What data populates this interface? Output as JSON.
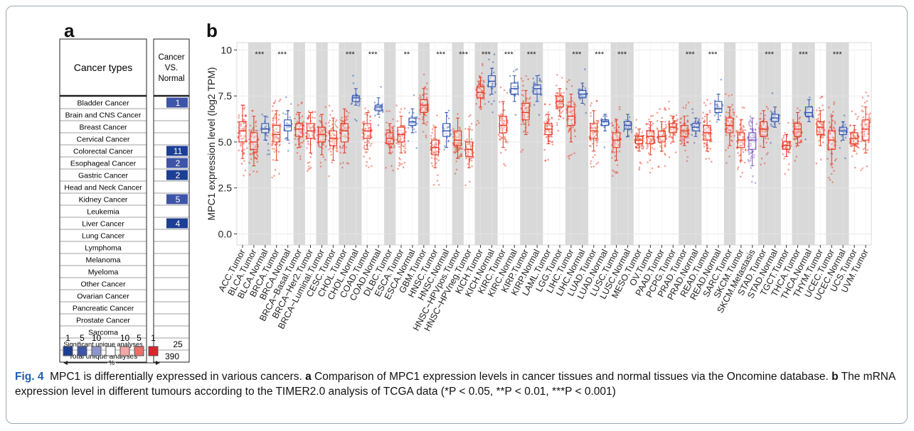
{
  "panel_a": {
    "letter": "a",
    "header_types": "Cancer types",
    "header_comp_l1": "Cancer",
    "header_comp_l2": "VS.",
    "header_comp_l3": "Normal",
    "rows": [
      {
        "label": "Bladder Cancer",
        "value": "1",
        "color": "#3d54a8"
      },
      {
        "label": "Brain and CNS Cancer",
        "value": "",
        "color": ""
      },
      {
        "label": "Breast Cancer",
        "value": "",
        "color": ""
      },
      {
        "label": "Cervical Cancer",
        "value": "",
        "color": ""
      },
      {
        "label": "Colorectal Cancer",
        "value": "11",
        "color": "#1c3f94"
      },
      {
        "label": "Esophageal Cancer",
        "value": "2",
        "color": "#3d54a8"
      },
      {
        "label": "Gastric Cancer",
        "value": "2",
        "color": "#1c3f94"
      },
      {
        "label": "Head and Neck Cancer",
        "value": "",
        "color": ""
      },
      {
        "label": "Kidney Cancer",
        "value": "5",
        "color": "#3d54a8"
      },
      {
        "label": "Leukemia",
        "value": "",
        "color": ""
      },
      {
        "label": "Liver Cancer",
        "value": "4",
        "color": "#1c3f94"
      },
      {
        "label": "Lung Cancer",
        "value": "",
        "color": ""
      },
      {
        "label": "Lymphoma",
        "value": "",
        "color": ""
      },
      {
        "label": "Melanoma",
        "value": "",
        "color": ""
      },
      {
        "label": "Myeloma",
        "value": "",
        "color": ""
      },
      {
        "label": "Other Cancer",
        "value": "",
        "color": ""
      },
      {
        "label": "Ovarian Cancer",
        "value": "",
        "color": ""
      },
      {
        "label": "Pancreatic Cancer",
        "value": "",
        "color": ""
      },
      {
        "label": "Prostate Cancer",
        "value": "",
        "color": ""
      },
      {
        "label": "Sarcoma",
        "value": "",
        "color": ""
      }
    ],
    "sig_label": "Significant unique analyses",
    "sig_value": "25",
    "total_label": "Total unique analyses",
    "total_value": "390",
    "legend": {
      "labels": [
        "1",
        "5",
        "10",
        "10",
        "5",
        "1"
      ],
      "percent": "%",
      "swatches": [
        "#1c3f94",
        "#3d54a8",
        "#8d96cc",
        "#ffffff",
        "#f3a8a6",
        "#ec6e68",
        "#d9262b"
      ]
    }
  },
  "panel_b": {
    "letter": "b"
  },
  "chart_data": {
    "type": "box",
    "ylabel": "MPC1 expression level (log2 TPM)",
    "ylim": [
      -0.6,
      10.4
    ],
    "yticks": [
      0.0,
      2.5,
      5.0,
      7.5,
      10.0
    ],
    "ytick_labels": [
      "0.0",
      "2.5",
      "5.0",
      "7.5",
      "10"
    ],
    "grid": true,
    "colors": {
      "tumor": "#e8351f",
      "normal": "#2b50b0",
      "shade": "#d9d9d9",
      "bg": "#ffffff"
    },
    "categories": [
      {
        "label": "ACC.Tumor",
        "kind": "tumor",
        "shade": false,
        "sig": "",
        "med": 5.6,
        "q1": 5.0,
        "q3": 6.1,
        "lo": 4.1,
        "hi": 7.0
      },
      {
        "label": "BLCA.Tumor",
        "kind": "tumor",
        "shade": true,
        "sig": "***",
        "med": 5.0,
        "q1": 4.6,
        "q3": 5.5,
        "lo": 3.7,
        "hi": 6.4
      },
      {
        "label": "BLCA.Normal",
        "kind": "normal",
        "shade": true,
        "sig": "",
        "med": 5.7,
        "q1": 5.5,
        "q3": 6.0,
        "lo": 5.1,
        "hi": 6.4
      },
      {
        "label": "BRCA.Tumor",
        "kind": "tumor",
        "shade": false,
        "sig": "***",
        "med": 5.4,
        "q1": 5.0,
        "q3": 5.9,
        "lo": 4.0,
        "hi": 6.7
      },
      {
        "label": "BRCA.Normal",
        "kind": "normal",
        "shade": false,
        "sig": "",
        "med": 5.9,
        "q1": 5.6,
        "q3": 6.2,
        "lo": 5.1,
        "hi": 6.7
      },
      {
        "label": "BRCA−Basal.Tumor",
        "kind": "tumor",
        "shade": true,
        "sig": "",
        "med": 5.7,
        "q1": 5.3,
        "q3": 6.0,
        "lo": 4.7,
        "hi": 6.6
      },
      {
        "label": "BRCA−Her2.Tumor",
        "kind": "tumor",
        "shade": false,
        "sig": "",
        "med": 5.6,
        "q1": 5.2,
        "q3": 6.0,
        "lo": 4.4,
        "hi": 6.6
      },
      {
        "label": "BRCA−Luminal.Tumor",
        "kind": "tumor",
        "shade": true,
        "sig": "",
        "med": 5.4,
        "q1": 5.0,
        "q3": 5.8,
        "lo": 4.3,
        "hi": 6.5
      },
      {
        "label": "CESC.Tumor",
        "kind": "tumor",
        "shade": false,
        "sig": "",
        "med": 5.2,
        "q1": 4.8,
        "q3": 5.6,
        "lo": 4.0,
        "hi": 6.3
      },
      {
        "label": "CHOL.Tumor",
        "kind": "tumor",
        "shade": true,
        "sig": "***",
        "med": 5.6,
        "q1": 5.0,
        "q3": 6.0,
        "lo": 4.4,
        "hi": 6.8
      },
      {
        "label": "CHOL.Normal",
        "kind": "normal",
        "shade": true,
        "sig": "",
        "med": 7.4,
        "q1": 7.2,
        "q3": 7.5,
        "lo": 7.0,
        "hi": 7.9
      },
      {
        "label": "COAD.Tumor",
        "kind": "tumor",
        "shade": false,
        "sig": "***",
        "med": 5.6,
        "q1": 5.2,
        "q3": 6.0,
        "lo": 4.6,
        "hi": 6.6
      },
      {
        "label": "COAD.Normal",
        "kind": "normal",
        "shade": false,
        "sig": "",
        "med": 6.9,
        "q1": 6.7,
        "q3": 7.0,
        "lo": 6.5,
        "hi": 7.4
      },
      {
        "label": "DLBC.Tumor",
        "kind": "tumor",
        "shade": true,
        "sig": "",
        "med": 5.2,
        "q1": 4.9,
        "q3": 5.5,
        "lo": 4.4,
        "hi": 6.0
      },
      {
        "label": "ESCA.Tumor",
        "kind": "tumor",
        "shade": false,
        "sig": "**",
        "med": 5.4,
        "q1": 5.0,
        "q3": 5.8,
        "lo": 4.4,
        "hi": 6.4
      },
      {
        "label": "ESCA.Normal",
        "kind": "normal",
        "shade": false,
        "sig": "",
        "med": 6.1,
        "q1": 5.9,
        "q3": 6.3,
        "lo": 5.5,
        "hi": 6.8
      },
      {
        "label": "GBM.Tumor",
        "kind": "tumor",
        "shade": true,
        "sig": "",
        "med": 7.0,
        "q1": 6.6,
        "q3": 7.3,
        "lo": 6.0,
        "hi": 7.9
      },
      {
        "label": "HNSC.Tumor",
        "kind": "tumor",
        "shade": false,
        "sig": "***",
        "med": 4.7,
        "q1": 4.3,
        "q3": 5.1,
        "lo": 3.6,
        "hi": 5.8
      },
      {
        "label": "HNSC.Normal",
        "kind": "normal",
        "shade": false,
        "sig": "",
        "med": 5.6,
        "q1": 5.3,
        "q3": 6.0,
        "lo": 4.7,
        "hi": 6.6
      },
      {
        "label": "HNSC−HPVpos.Tumor",
        "kind": "tumor",
        "shade": true,
        "sig": "***",
        "med": 5.1,
        "q1": 4.8,
        "q3": 5.6,
        "lo": 4.1,
        "hi": 6.3
      },
      {
        "label": "HNSC−HPVneg.Tumor",
        "kind": "tumor",
        "shade": false,
        "sig": "",
        "med": 4.6,
        "q1": 4.2,
        "q3": 5.0,
        "lo": 3.6,
        "hi": 5.7
      },
      {
        "label": "KICH.Tumor",
        "kind": "tumor",
        "shade": true,
        "sig": "***",
        "med": 7.7,
        "q1": 7.4,
        "q3": 8.0,
        "lo": 6.9,
        "hi": 8.5
      },
      {
        "label": "KICH.Normal",
        "kind": "normal",
        "shade": true,
        "sig": "",
        "med": 8.3,
        "q1": 8.0,
        "q3": 8.6,
        "lo": 7.6,
        "hi": 9.0
      },
      {
        "label": "KIRC.Tumor",
        "kind": "tumor",
        "shade": false,
        "sig": "***",
        "med": 5.9,
        "q1": 5.5,
        "q3": 6.4,
        "lo": 4.7,
        "hi": 7.2
      },
      {
        "label": "KIRC.Normal",
        "kind": "normal",
        "shade": false,
        "sig": "",
        "med": 7.9,
        "q1": 7.6,
        "q3": 8.2,
        "lo": 7.2,
        "hi": 8.6
      },
      {
        "label": "KIRP.Tumor",
        "kind": "tumor",
        "shade": true,
        "sig": "***",
        "med": 6.6,
        "q1": 6.2,
        "q3": 7.1,
        "lo": 5.4,
        "hi": 7.8
      },
      {
        "label": "KIRP.Normal",
        "kind": "normal",
        "shade": true,
        "sig": "",
        "med": 7.9,
        "q1": 7.6,
        "q3": 8.1,
        "lo": 7.2,
        "hi": 8.6
      },
      {
        "label": "LAML.Tumor",
        "kind": "tumor",
        "shade": false,
        "sig": "",
        "med": 5.7,
        "q1": 5.4,
        "q3": 6.0,
        "lo": 4.9,
        "hi": 6.5
      },
      {
        "label": "LGG.Tumor",
        "kind": "tumor",
        "shade": false,
        "sig": "",
        "med": 7.2,
        "q1": 6.9,
        "q3": 7.5,
        "lo": 6.4,
        "hi": 7.9
      },
      {
        "label": "LIHC.Tumor",
        "kind": "tumor",
        "shade": true,
        "sig": "***",
        "med": 6.4,
        "q1": 5.9,
        "q3": 6.9,
        "lo": 5.0,
        "hi": 7.6
      },
      {
        "label": "LIHC.Normal",
        "kind": "normal",
        "shade": true,
        "sig": "",
        "med": 7.6,
        "q1": 7.4,
        "q3": 7.8,
        "lo": 7.1,
        "hi": 8.2
      },
      {
        "label": "LUAD.Tumor",
        "kind": "tumor",
        "shade": false,
        "sig": "***",
        "med": 5.6,
        "q1": 5.2,
        "q3": 6.0,
        "lo": 4.5,
        "hi": 6.7
      },
      {
        "label": "LUAD.Normal",
        "kind": "normal",
        "shade": false,
        "sig": "",
        "med": 6.1,
        "q1": 5.9,
        "q3": 6.2,
        "lo": 5.6,
        "hi": 6.5
      },
      {
        "label": "LUSC.Tumor",
        "kind": "tumor",
        "shade": true,
        "sig": "***",
        "med": 5.1,
        "q1": 4.7,
        "q3": 5.5,
        "lo": 4.0,
        "hi": 6.2
      },
      {
        "label": "LUSC.Normal",
        "kind": "normal",
        "shade": true,
        "sig": "",
        "med": 5.9,
        "q1": 5.7,
        "q3": 6.1,
        "lo": 5.3,
        "hi": 6.5
      },
      {
        "label": "MESO.Tumor",
        "kind": "tumor",
        "shade": false,
        "sig": "",
        "med": 5.1,
        "q1": 4.9,
        "q3": 5.3,
        "lo": 4.5,
        "hi": 5.7
      },
      {
        "label": "OV.Tumor",
        "kind": "tumor",
        "shade": false,
        "sig": "",
        "med": 5.3,
        "q1": 4.9,
        "q3": 5.6,
        "lo": 4.3,
        "hi": 6.1
      },
      {
        "label": "PAAD.Tumor",
        "kind": "tumor",
        "shade": false,
        "sig": "",
        "med": 5.3,
        "q1": 5.0,
        "q3": 5.6,
        "lo": 4.5,
        "hi": 6.1
      },
      {
        "label": "PCPG.Tumor",
        "kind": "tumor",
        "shade": false,
        "sig": "",
        "med": 5.8,
        "q1": 5.5,
        "q3": 6.0,
        "lo": 5.0,
        "hi": 6.4
      },
      {
        "label": "PRAD.Tumor",
        "kind": "tumor",
        "shade": true,
        "sig": "***",
        "med": 5.6,
        "q1": 5.3,
        "q3": 5.9,
        "lo": 4.8,
        "hi": 6.4
      },
      {
        "label": "PRAD.Normal",
        "kind": "normal",
        "shade": true,
        "sig": "",
        "med": 5.8,
        "q1": 5.6,
        "q3": 6.0,
        "lo": 5.3,
        "hi": 6.3
      },
      {
        "label": "READ.Tumor",
        "kind": "tumor",
        "shade": false,
        "sig": "***",
        "med": 5.5,
        "q1": 5.1,
        "q3": 5.9,
        "lo": 4.5,
        "hi": 6.5
      },
      {
        "label": "READ.Normal",
        "kind": "normal",
        "shade": false,
        "sig": "",
        "med": 6.8,
        "q1": 6.6,
        "q3": 7.2,
        "lo": 6.2,
        "hi": 7.6
      },
      {
        "label": "SARC.Tumor",
        "kind": "tumor",
        "shade": true,
        "sig": "",
        "med": 5.9,
        "q1": 5.5,
        "q3": 6.3,
        "lo": 4.8,
        "hi": 6.9
      },
      {
        "label": "SKCM.Tumor",
        "kind": "tumor",
        "shade": false,
        "sig": "",
        "med": 5.1,
        "q1": 4.7,
        "q3": 5.5,
        "lo": 4.0,
        "hi": 6.2
      },
      {
        "label": "SKCM.Metastasis",
        "kind": "metastasis",
        "shade": false,
        "sig": "",
        "med": 5.1,
        "q1": 4.6,
        "q3": 5.5,
        "lo": 3.7,
        "hi": 6.3
      },
      {
        "label": "STAD.Tumor",
        "kind": "tumor",
        "shade": true,
        "sig": "***",
        "med": 5.7,
        "q1": 5.3,
        "q3": 6.1,
        "lo": 4.7,
        "hi": 6.7
      },
      {
        "label": "STAD.Normal",
        "kind": "normal",
        "shade": true,
        "sig": "",
        "med": 6.3,
        "q1": 6.1,
        "q3": 6.5,
        "lo": 5.8,
        "hi": 6.9
      },
      {
        "label": "TGCT.Tumor",
        "kind": "tumor",
        "shade": false,
        "sig": "",
        "med": 4.8,
        "q1": 4.6,
        "q3": 5.0,
        "lo": 4.2,
        "hi": 5.4
      },
      {
        "label": "THCA.Tumor",
        "kind": "tumor",
        "shade": true,
        "sig": "***",
        "med": 5.7,
        "q1": 5.3,
        "q3": 6.0,
        "lo": 4.8,
        "hi": 6.6
      },
      {
        "label": "THCA.Normal",
        "kind": "normal",
        "shade": true,
        "sig": "",
        "med": 6.6,
        "q1": 6.4,
        "q3": 6.9,
        "lo": 6.1,
        "hi": 7.3
      },
      {
        "label": "THYM.Tumor",
        "kind": "tumor",
        "shade": false,
        "sig": "",
        "med": 5.8,
        "q1": 5.4,
        "q3": 6.1,
        "lo": 4.8,
        "hi": 6.7
      },
      {
        "label": "UCEC.Tumor",
        "kind": "tumor",
        "shade": true,
        "sig": "***",
        "med": 5.1,
        "q1": 4.6,
        "q3": 5.6,
        "lo": 3.8,
        "hi": 6.4
      },
      {
        "label": "UCEC.Normal",
        "kind": "normal",
        "shade": true,
        "sig": "",
        "med": 5.6,
        "q1": 5.4,
        "q3": 5.8,
        "lo": 5.1,
        "hi": 6.1
      },
      {
        "label": "UCS.Tumor",
        "kind": "tumor",
        "shade": false,
        "sig": "",
        "med": 5.2,
        "q1": 4.9,
        "q3": 5.5,
        "lo": 4.5,
        "hi": 5.9
      },
      {
        "label": "UVM.Tumor",
        "kind": "tumor",
        "shade": false,
        "sig": "",
        "med": 5.7,
        "q1": 5.1,
        "q3": 6.2,
        "lo": 4.4,
        "hi": 6.9
      }
    ]
  },
  "caption": {
    "fig": "Fig. 4",
    "title": "MPC1 is differentially expressed in various cancers.",
    "a_letter": "a",
    "a_text": "Comparison of MPC1 expression levels in cancer tissues and normal tissues via the Oncomine database.",
    "b_letter": "b",
    "b_text": "The mRNA expression level in different tumours according to the TIMER2.0 analysis of TCGA data (*P < 0.05, **P < 0.01, ***P < 0.001)"
  }
}
